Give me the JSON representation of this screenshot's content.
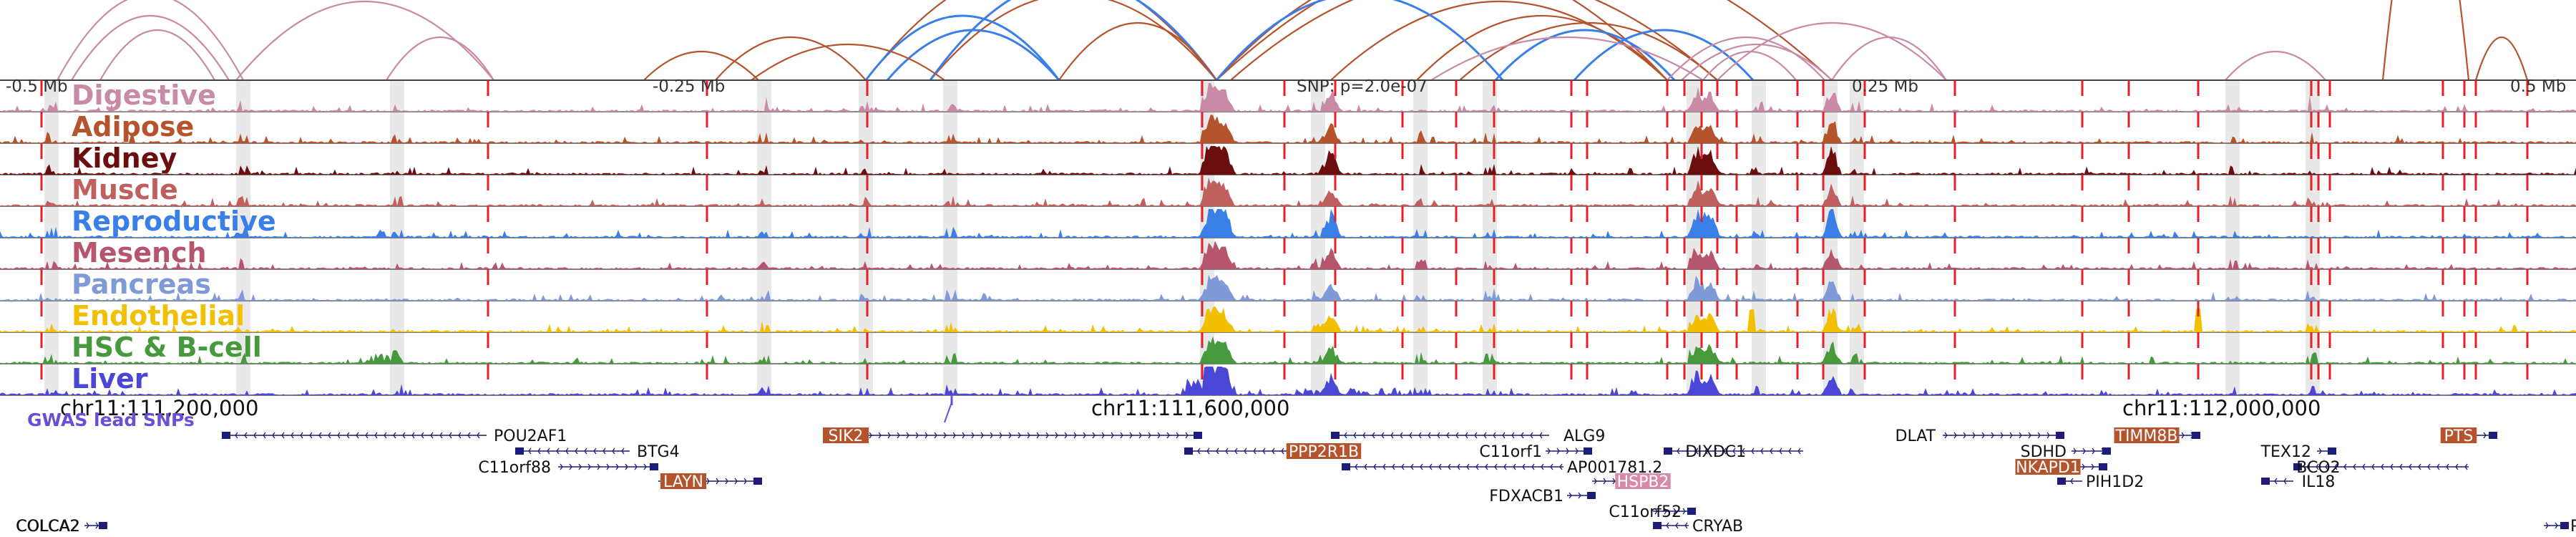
{
  "scale_labels": [
    "-0.5 Mb",
    "-0.25 Mb",
    "0.25 Mb",
    "0.5 Mb"
  ],
  "snp_label": "SNP: p=2.0e-07",
  "tracks": [
    {
      "name": "Digestive",
      "color": "#c98aa6"
    },
    {
      "name": "Adipose",
      "color": "#b5532c"
    },
    {
      "name": "Kidney",
      "color": "#6b0e0e"
    },
    {
      "name": "Muscle",
      "color": "#c0605e"
    },
    {
      "name": "Reproductive",
      "color": "#3a7ee8"
    },
    {
      "name": "Mesench",
      "color": "#b5566e"
    },
    {
      "name": "Pancreas",
      "color": "#7f9ad6"
    },
    {
      "name": "Endothelial",
      "color": "#f2c000"
    },
    {
      "name": "HSC & B-cell",
      "color": "#47993e"
    },
    {
      "name": "Liver",
      "color": "#4b47d6"
    }
  ],
  "coord_labels": [
    "chr11:111,200,000",
    "chr11:111,600,000",
    "chr11:112,000,000"
  ],
  "gwas_label": "GWAS lead SNPs",
  "genes": [
    {
      "name": "POU2AF1",
      "highlight": false
    },
    {
      "name": "BTG4",
      "highlight": false
    },
    {
      "name": "C11orf88",
      "highlight": false
    },
    {
      "name": "LAYN",
      "highlight": true
    },
    {
      "name": "SIK2",
      "highlight": true
    },
    {
      "name": "PPP2R1B",
      "highlight": true
    },
    {
      "name": "ALG9",
      "highlight": false
    },
    {
      "name": "C11orf1",
      "highlight": false
    },
    {
      "name": "DIXDC1",
      "highlight": false
    },
    {
      "name": "AP001781.2",
      "highlight": false
    },
    {
      "name": "HSPB2",
      "highlight": true
    },
    {
      "name": "FDXACB1",
      "highlight": false
    },
    {
      "name": "C11orf52",
      "highlight": false
    },
    {
      "name": "CRYAB",
      "highlight": false
    },
    {
      "name": "DLAT",
      "highlight": false
    },
    {
      "name": "SDHD",
      "highlight": false
    },
    {
      "name": "TIMM8B",
      "highlight": true
    },
    {
      "name": "NKAPD1",
      "highlight": true
    },
    {
      "name": "PIH1D2",
      "highlight": false
    },
    {
      "name": "TEX12",
      "highlight": false
    },
    {
      "name": "BCO2",
      "highlight": false
    },
    {
      "name": "IL18",
      "highlight": false
    },
    {
      "name": "PTS",
      "highlight": true
    },
    {
      "name": "COLCA2",
      "highlight": false
    },
    {
      "name": "P",
      "highlight": false
    }
  ],
  "colors": {
    "arc_brown": "#b5532c",
    "arc_pink": "#c98aa6",
    "arc_blue": "#3a7ee8",
    "peak_marker": "#e0202a",
    "gene_strand": "#1c1c7a",
    "gene_highlight_bg": "#b5532c",
    "gene_highlight_pink": "#d68aa8"
  }
}
